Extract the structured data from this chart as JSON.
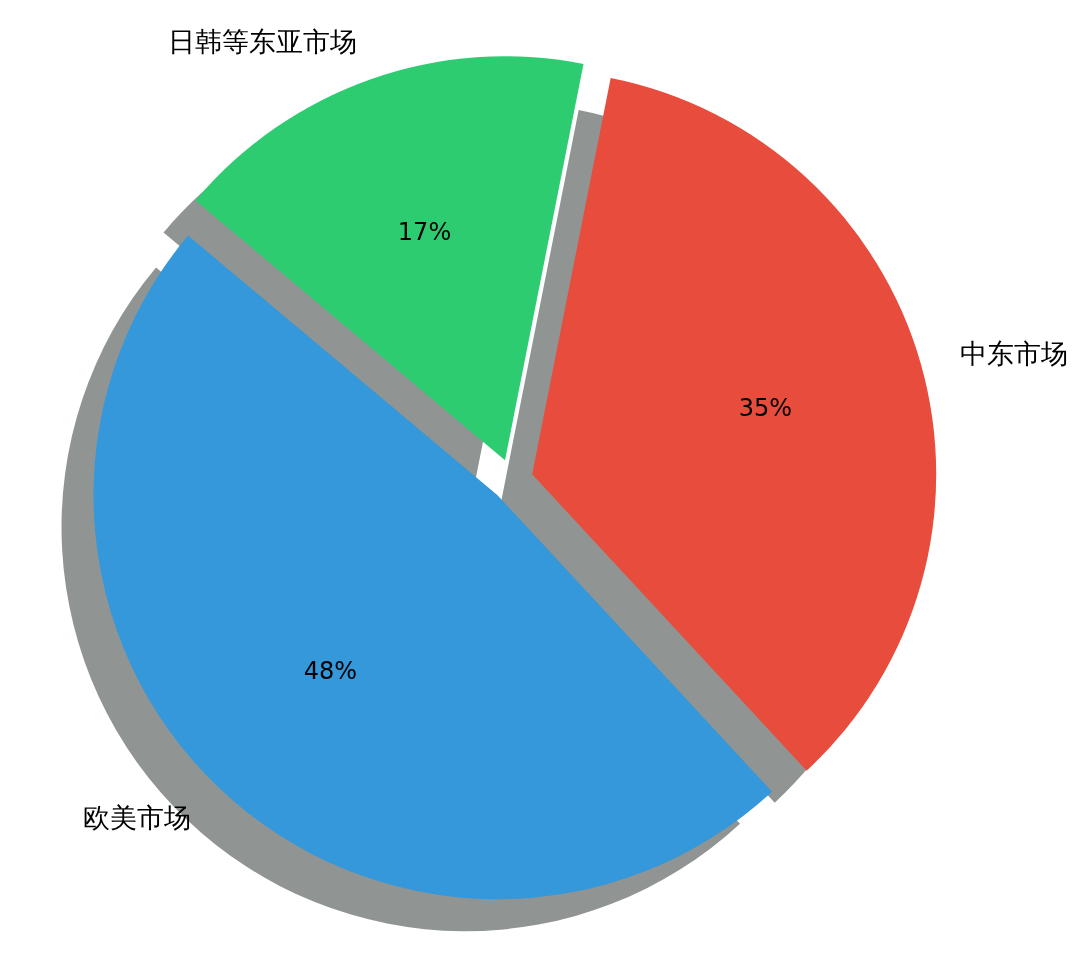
{
  "chart_data": {
    "type": "pie",
    "categories": [
      "欧美市场",
      "中东市场",
      "日韩等东亚市场"
    ],
    "values": [
      48,
      35,
      17
    ],
    "colors": [
      "#3498db",
      "#e74c3c",
      "#2ecc71"
    ],
    "value_labels": [
      "48%",
      "35%",
      "17%"
    ]
  }
}
